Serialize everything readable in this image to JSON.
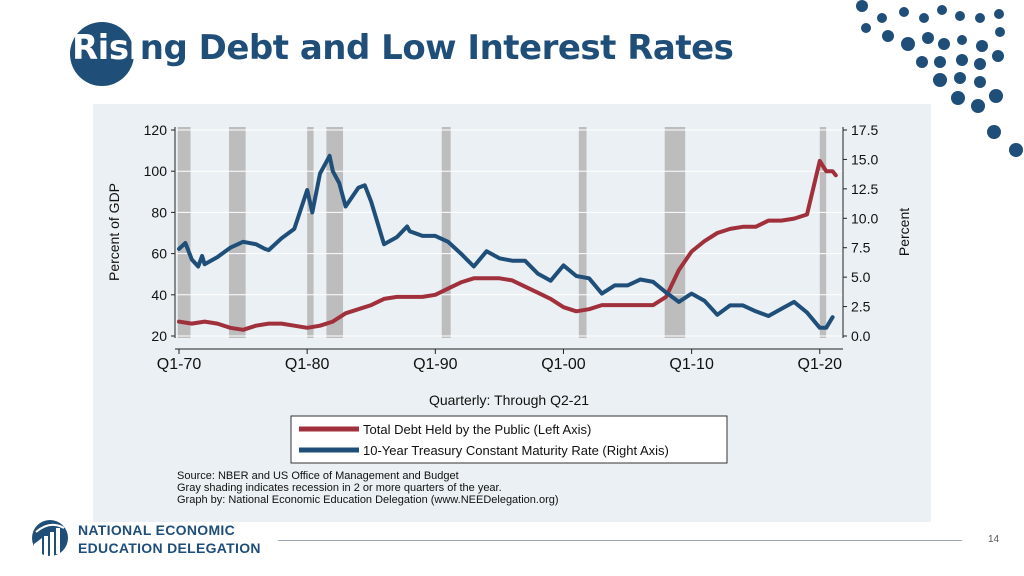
{
  "slide": {
    "title_white": "Risi",
    "title_rest": "ng Debt and Low Interest Rates",
    "page_number": "14"
  },
  "logo": {
    "line1": "NATIONAL ECONOMIC",
    "line2": "EDUCATION DELEGATION"
  },
  "chart_data": {
    "type": "line",
    "xlabel": "Quarterly: Through Q2-21",
    "ylabel": "Percent of GDP",
    "ylabel_right": "Percent",
    "x_ticks": [
      "Q1-70",
      "Q1-80",
      "Q1-90",
      "Q1-00",
      "Q1-10",
      "Q1-20"
    ],
    "y_ticks": [
      "120",
      "100",
      "80",
      "60",
      "40",
      "20"
    ],
    "y2_ticks": [
      "17.5",
      "15.0",
      "12.5",
      "10.0",
      "7.5",
      "5.0",
      "2.5",
      "0.0"
    ],
    "ylim": [
      20,
      120
    ],
    "y2lim": [
      0,
      17.5
    ],
    "xlim": [
      1970,
      2021.5
    ],
    "grid": true,
    "recessions": [
      [
        1969.9,
        1970.9
      ],
      [
        1973.9,
        1975.2
      ],
      [
        1980.0,
        1980.5
      ],
      [
        1981.5,
        1982.8
      ],
      [
        1990.5,
        1991.2
      ],
      [
        2001.2,
        2001.8
      ],
      [
        2007.9,
        2009.5
      ],
      [
        2020.0,
        2020.5
      ]
    ],
    "series": [
      {
        "name": "Total Debt Held by the Public (Left Axis)",
        "axis": "left",
        "color": "#a0303c",
        "points": [
          [
            1970,
            27
          ],
          [
            1971,
            26
          ],
          [
            1972,
            27
          ],
          [
            1973,
            26
          ],
          [
            1974,
            24
          ],
          [
            1975,
            23
          ],
          [
            1976,
            25
          ],
          [
            1977,
            26
          ],
          [
            1978,
            26
          ],
          [
            1979,
            25
          ],
          [
            1980,
            24
          ],
          [
            1981,
            25
          ],
          [
            1982,
            27
          ],
          [
            1983,
            31
          ],
          [
            1984,
            33
          ],
          [
            1985,
            35
          ],
          [
            1986,
            38
          ],
          [
            1987,
            39
          ],
          [
            1988,
            39
          ],
          [
            1989,
            39
          ],
          [
            1990,
            40
          ],
          [
            1991,
            43
          ],
          [
            1992,
            46
          ],
          [
            1993,
            48
          ],
          [
            1994,
            48
          ],
          [
            1995,
            48
          ],
          [
            1996,
            47
          ],
          [
            1997,
            44
          ],
          [
            1998,
            41
          ],
          [
            1999,
            38
          ],
          [
            2000,
            34
          ],
          [
            2001,
            32
          ],
          [
            2002,
            33
          ],
          [
            2003,
            35
          ],
          [
            2004,
            35
          ],
          [
            2005,
            35
          ],
          [
            2006,
            35
          ],
          [
            2007,
            35
          ],
          [
            2008,
            39
          ],
          [
            2009,
            52
          ],
          [
            2010,
            61
          ],
          [
            2011,
            66
          ],
          [
            2012,
            70
          ],
          [
            2013,
            72
          ],
          [
            2014,
            73
          ],
          [
            2015,
            73
          ],
          [
            2016,
            76
          ],
          [
            2017,
            76
          ],
          [
            2018,
            77
          ],
          [
            2019,
            79
          ],
          [
            2020,
            105
          ],
          [
            2020.5,
            100
          ],
          [
            2021,
            100
          ],
          [
            2021.25,
            98
          ]
        ]
      },
      {
        "name": "10-Year Treasury Constant Maturity Rate (Right Axis)",
        "axis": "right",
        "color": "#1f4e79",
        "points": [
          [
            1970,
            7.4
          ],
          [
            1970.5,
            7.9
          ],
          [
            1971,
            6.5
          ],
          [
            1971.5,
            5.9
          ],
          [
            1971.8,
            6.8
          ],
          [
            1972,
            6.1
          ],
          [
            1973,
            6.7
          ],
          [
            1974,
            7.5
          ],
          [
            1975,
            8.0
          ],
          [
            1976,
            7.8
          ],
          [
            1976.7,
            7.4
          ],
          [
            1977,
            7.3
          ],
          [
            1978,
            8.3
          ],
          [
            1979,
            9.1
          ],
          [
            1980,
            12.4
          ],
          [
            1980.4,
            10.5
          ],
          [
            1981,
            13.8
          ],
          [
            1981.75,
            15.3
          ],
          [
            1982,
            14.0
          ],
          [
            1982.5,
            13.0
          ],
          [
            1983,
            11.0
          ],
          [
            1984,
            12.6
          ],
          [
            1984.5,
            12.8
          ],
          [
            1985,
            11.4
          ],
          [
            1986,
            7.8
          ],
          [
            1987,
            8.4
          ],
          [
            1987.8,
            9.3
          ],
          [
            1988,
            8.9
          ],
          [
            1989,
            8.5
          ],
          [
            1990,
            8.5
          ],
          [
            1991,
            8.0
          ],
          [
            1992,
            7.0
          ],
          [
            1993,
            5.9
          ],
          [
            1994,
            7.2
          ],
          [
            1995,
            6.6
          ],
          [
            1996,
            6.4
          ],
          [
            1997,
            6.4
          ],
          [
            1998,
            5.3
          ],
          [
            1999,
            4.7
          ],
          [
            2000,
            6.0
          ],
          [
            2001,
            5.1
          ],
          [
            2002,
            4.9
          ],
          [
            2003,
            3.6
          ],
          [
            2004,
            4.3
          ],
          [
            2005,
            4.3
          ],
          [
            2006,
            4.8
          ],
          [
            2007,
            4.6
          ],
          [
            2008,
            3.7
          ],
          [
            2009,
            2.9
          ],
          [
            2010,
            3.6
          ],
          [
            2011,
            3.0
          ],
          [
            2012,
            1.8
          ],
          [
            2013,
            2.6
          ],
          [
            2014,
            2.6
          ],
          [
            2015,
            2.1
          ],
          [
            2016,
            1.7
          ],
          [
            2017,
            2.3
          ],
          [
            2018,
            2.9
          ],
          [
            2019,
            2.0
          ],
          [
            2020,
            0.7
          ],
          [
            2020.5,
            0.7
          ],
          [
            2021,
            1.6
          ]
        ]
      }
    ],
    "source_lines": [
      "Source: NBER and US Office of Management and Budget",
      "Gray shading indicates recession in 2 or more quarters of the year.",
      "Graph by: National Economic Education Delegation (www.NEEDelegation.org)"
    ]
  }
}
